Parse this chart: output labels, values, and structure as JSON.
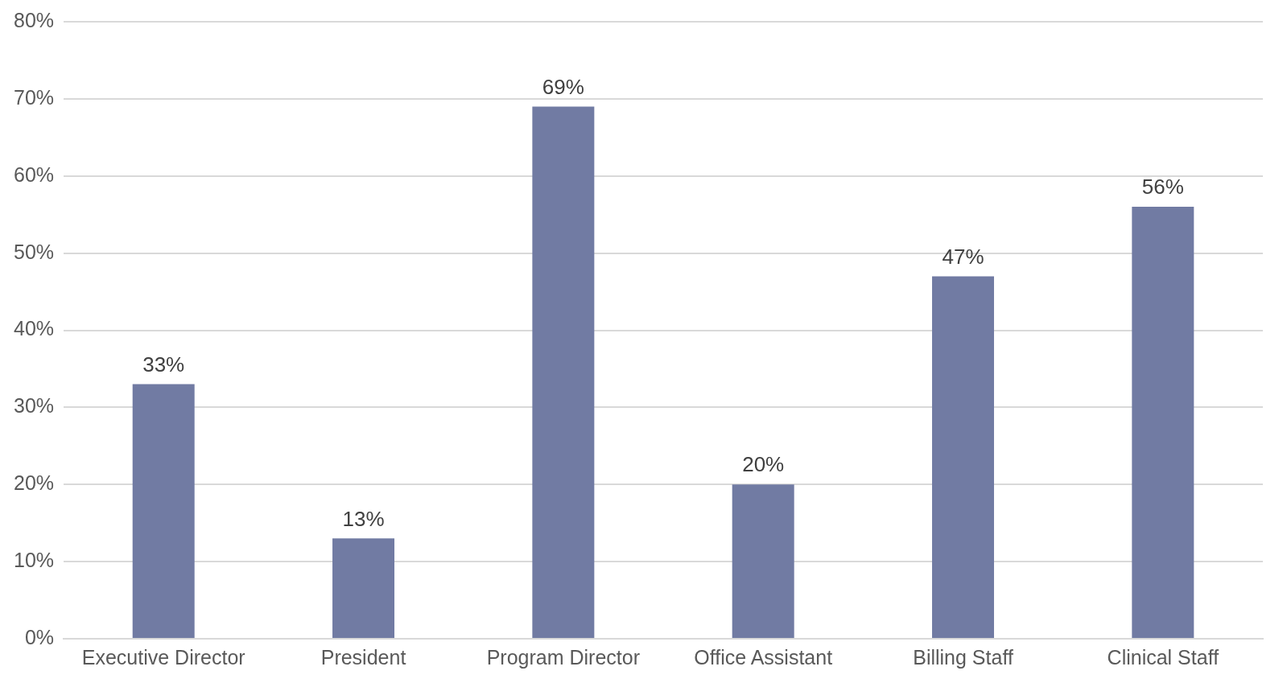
{
  "chart_data": {
    "type": "bar",
    "categories": [
      "Executive Director",
      "President",
      "Program Director",
      "Office Assistant",
      "Billing Staff",
      "Clinical Staff"
    ],
    "values": [
      33,
      13,
      69,
      20,
      47,
      56
    ],
    "value_labels": [
      "33%",
      "13%",
      "69%",
      "20%",
      "47%",
      "56%"
    ],
    "color": "#717ba3",
    "ylim": [
      0,
      80
    ],
    "yticks": [
      {
        "value": 0,
        "label": "0%"
      },
      {
        "value": 10,
        "label": "10%"
      },
      {
        "value": 20,
        "label": "20%"
      },
      {
        "value": 30,
        "label": "30%"
      },
      {
        "value": 40,
        "label": "40%"
      },
      {
        "value": 50,
        "label": "50%"
      },
      {
        "value": 60,
        "label": "60%"
      },
      {
        "value": 70,
        "label": "70%"
      },
      {
        "value": 80,
        "label": "80%"
      }
    ],
    "grid": "y",
    "legend": false
  }
}
